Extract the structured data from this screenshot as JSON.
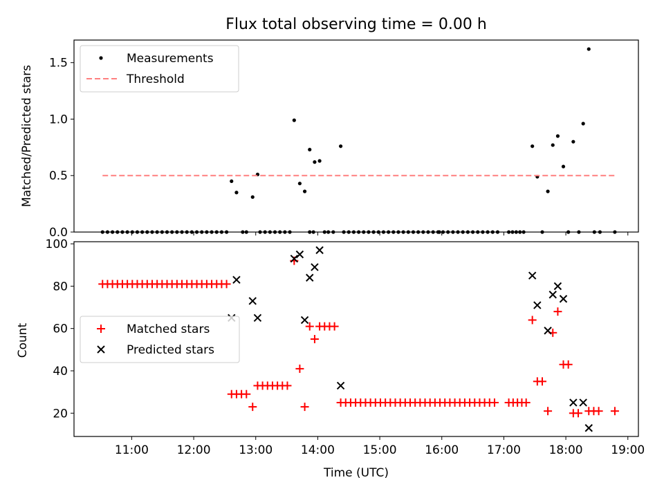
{
  "title": "Flux total observing time = 0.00 h",
  "colors": {
    "measurement": "#000000",
    "threshold": "#ff7f7f",
    "matched": "#ff0000",
    "predicted": "#000000",
    "axes": "#000000",
    "legend_border": "#cccccc"
  },
  "chart_data": [
    {
      "type": "scatter",
      "panel": "top",
      "xlabel": "",
      "ylabel": "Matched/Predicted stars",
      "xlim": [
        10.07,
        19.17
      ],
      "ylim": [
        0,
        1.7
      ],
      "yticks": [
        0.0,
        0.5,
        1.0,
        1.5
      ],
      "ytick_labels": [
        "0.0",
        "0.5",
        "1.0",
        "1.5"
      ],
      "xticks": [
        11,
        12,
        13,
        14,
        15,
        16,
        17,
        18,
        19
      ],
      "legend_position": "upper-left",
      "grid": false,
      "legend": [
        {
          "label": "Measurements",
          "marker": "dot"
        },
        {
          "label": "Threshold",
          "marker": "dashed-line"
        }
      ],
      "series": [
        {
          "name": "Measurements",
          "marker": "dot",
          "zero_points_x": [
            10.53,
            10.61,
            10.69,
            10.77,
            10.85,
            10.93,
            11.01,
            11.09,
            11.17,
            11.25,
            11.33,
            11.41,
            11.49,
            11.57,
            11.65,
            11.73,
            11.81,
            11.89,
            11.97,
            12.05,
            12.13,
            12.21,
            12.29,
            12.37,
            12.45,
            12.53,
            12.79,
            12.85,
            13.07,
            13.15,
            13.23,
            13.31,
            13.39,
            13.47,
            13.55,
            13.87,
            13.93,
            14.11,
            14.17,
            14.25,
            14.42,
            14.5,
            14.58,
            14.66,
            14.74,
            14.82,
            14.9,
            14.98,
            15.06,
            15.14,
            15.22,
            15.3,
            15.38,
            15.46,
            15.54,
            15.62,
            15.7,
            15.78,
            15.86,
            15.94,
            15.96,
            16.02,
            16.1,
            16.18,
            16.26,
            16.34,
            16.42,
            16.5,
            16.58,
            16.66,
            16.74,
            16.82,
            16.9,
            17.08,
            17.14,
            17.2,
            17.26,
            17.32,
            17.62,
            18.04,
            18.21,
            18.46,
            18.55,
            18.79
          ],
          "points": [
            {
              "x": 12.61,
              "y": 0.45
            },
            {
              "x": 12.69,
              "y": 0.35
            },
            {
              "x": 12.95,
              "y": 0.31
            },
            {
              "x": 13.03,
              "y": 0.51
            },
            {
              "x": 13.62,
              "y": 0.99
            },
            {
              "x": 13.71,
              "y": 0.43
            },
            {
              "x": 13.79,
              "y": 0.36
            },
            {
              "x": 13.87,
              "y": 0.73
            },
            {
              "x": 13.95,
              "y": 0.62
            },
            {
              "x": 14.03,
              "y": 0.63
            },
            {
              "x": 14.37,
              "y": 0.76
            },
            {
              "x": 17.46,
              "y": 0.76
            },
            {
              "x": 17.54,
              "y": 0.49
            },
            {
              "x": 17.71,
              "y": 0.36
            },
            {
              "x": 17.79,
              "y": 0.77
            },
            {
              "x": 17.87,
              "y": 0.85
            },
            {
              "x": 17.96,
              "y": 0.58
            },
            {
              "x": 18.12,
              "y": 0.8
            },
            {
              "x": 18.28,
              "y": 0.96
            },
            {
              "x": 18.37,
              "y": 1.62
            }
          ]
        },
        {
          "name": "Threshold",
          "marker": "dashed-line",
          "x": [
            10.53,
            18.79
          ],
          "y": [
            0.5,
            0.5
          ]
        }
      ]
    },
    {
      "type": "scatter",
      "panel": "bottom",
      "xlabel": "Time (UTC)",
      "ylabel": "Count",
      "xlim": [
        10.07,
        19.17
      ],
      "ylim": [
        9,
        101
      ],
      "yticks": [
        20,
        40,
        60,
        80,
        100
      ],
      "xticks": [
        11,
        12,
        13,
        14,
        15,
        16,
        17,
        18,
        19
      ],
      "xtick_labels": [
        "11:00",
        "12:00",
        "13:00",
        "14:00",
        "15:00",
        "16:00",
        "17:00",
        "18:00",
        "19:00"
      ],
      "legend_position": "center-left",
      "grid": false,
      "legend": [
        {
          "label": "Matched stars",
          "marker": "plus"
        },
        {
          "label": "Predicted stars",
          "marker": "x"
        }
      ],
      "series": [
        {
          "name": "Matched stars",
          "marker": "plus",
          "points": [
            {
              "x": 10.53,
              "y": 81
            },
            {
              "x": 10.61,
              "y": 81
            },
            {
              "x": 10.69,
              "y": 81
            },
            {
              "x": 10.77,
              "y": 81
            },
            {
              "x": 10.85,
              "y": 81
            },
            {
              "x": 10.93,
              "y": 81
            },
            {
              "x": 11.01,
              "y": 81
            },
            {
              "x": 11.09,
              "y": 81
            },
            {
              "x": 11.17,
              "y": 81
            },
            {
              "x": 11.25,
              "y": 81
            },
            {
              "x": 11.33,
              "y": 81
            },
            {
              "x": 11.41,
              "y": 81
            },
            {
              "x": 11.49,
              "y": 81
            },
            {
              "x": 11.57,
              "y": 81
            },
            {
              "x": 11.65,
              "y": 81
            },
            {
              "x": 11.73,
              "y": 81
            },
            {
              "x": 11.81,
              "y": 81
            },
            {
              "x": 11.89,
              "y": 81
            },
            {
              "x": 11.97,
              "y": 81
            },
            {
              "x": 12.05,
              "y": 81
            },
            {
              "x": 12.13,
              "y": 81
            },
            {
              "x": 12.21,
              "y": 81
            },
            {
              "x": 12.29,
              "y": 81
            },
            {
              "x": 12.37,
              "y": 81
            },
            {
              "x": 12.45,
              "y": 81
            },
            {
              "x": 12.53,
              "y": 81
            },
            {
              "x": 12.61,
              "y": 29
            },
            {
              "x": 12.69,
              "y": 29
            },
            {
              "x": 12.77,
              "y": 29
            },
            {
              "x": 12.85,
              "y": 29
            },
            {
              "x": 12.95,
              "y": 23
            },
            {
              "x": 13.03,
              "y": 33
            },
            {
              "x": 13.11,
              "y": 33
            },
            {
              "x": 13.19,
              "y": 33
            },
            {
              "x": 13.27,
              "y": 33
            },
            {
              "x": 13.35,
              "y": 33
            },
            {
              "x": 13.43,
              "y": 33
            },
            {
              "x": 13.51,
              "y": 33
            },
            {
              "x": 13.62,
              "y": 92
            },
            {
              "x": 13.71,
              "y": 41
            },
            {
              "x": 13.79,
              "y": 23
            },
            {
              "x": 13.87,
              "y": 61
            },
            {
              "x": 13.95,
              "y": 55
            },
            {
              "x": 14.03,
              "y": 61
            },
            {
              "x": 14.11,
              "y": 61
            },
            {
              "x": 14.19,
              "y": 61
            },
            {
              "x": 14.27,
              "y": 61
            },
            {
              "x": 14.37,
              "y": 25
            },
            {
              "x": 14.45,
              "y": 25
            },
            {
              "x": 14.53,
              "y": 25
            },
            {
              "x": 14.61,
              "y": 25
            },
            {
              "x": 14.69,
              "y": 25
            },
            {
              "x": 14.77,
              "y": 25
            },
            {
              "x": 14.85,
              "y": 25
            },
            {
              "x": 14.93,
              "y": 25
            },
            {
              "x": 15.01,
              "y": 25
            },
            {
              "x": 15.09,
              "y": 25
            },
            {
              "x": 15.17,
              "y": 25
            },
            {
              "x": 15.25,
              "y": 25
            },
            {
              "x": 15.33,
              "y": 25
            },
            {
              "x": 15.41,
              "y": 25
            },
            {
              "x": 15.49,
              "y": 25
            },
            {
              "x": 15.57,
              "y": 25
            },
            {
              "x": 15.65,
              "y": 25
            },
            {
              "x": 15.73,
              "y": 25
            },
            {
              "x": 15.81,
              "y": 25
            },
            {
              "x": 15.89,
              "y": 25
            },
            {
              "x": 15.97,
              "y": 25
            },
            {
              "x": 16.05,
              "y": 25
            },
            {
              "x": 16.13,
              "y": 25
            },
            {
              "x": 16.21,
              "y": 25
            },
            {
              "x": 16.29,
              "y": 25
            },
            {
              "x": 16.37,
              "y": 25
            },
            {
              "x": 16.45,
              "y": 25
            },
            {
              "x": 16.53,
              "y": 25
            },
            {
              "x": 16.61,
              "y": 25
            },
            {
              "x": 16.69,
              "y": 25
            },
            {
              "x": 16.77,
              "y": 25
            },
            {
              "x": 16.85,
              "y": 25
            },
            {
              "x": 17.08,
              "y": 25
            },
            {
              "x": 17.15,
              "y": 25
            },
            {
              "x": 17.22,
              "y": 25
            },
            {
              "x": 17.29,
              "y": 25
            },
            {
              "x": 17.36,
              "y": 25
            },
            {
              "x": 17.46,
              "y": 64
            },
            {
              "x": 17.54,
              "y": 35
            },
            {
              "x": 17.62,
              "y": 35
            },
            {
              "x": 17.71,
              "y": 21
            },
            {
              "x": 17.79,
              "y": 58
            },
            {
              "x": 17.87,
              "y": 68
            },
            {
              "x": 17.96,
              "y": 43
            },
            {
              "x": 18.04,
              "y": 43
            },
            {
              "x": 18.12,
              "y": 20
            },
            {
              "x": 18.2,
              "y": 20
            },
            {
              "x": 18.37,
              "y": 21
            },
            {
              "x": 18.45,
              "y": 21
            },
            {
              "x": 18.53,
              "y": 21
            },
            {
              "x": 18.79,
              "y": 21
            }
          ]
        },
        {
          "name": "Predicted stars",
          "marker": "x",
          "points": [
            {
              "x": 12.61,
              "y": 65
            },
            {
              "x": 12.69,
              "y": 83
            },
            {
              "x": 12.95,
              "y": 73
            },
            {
              "x": 13.03,
              "y": 65
            },
            {
              "x": 13.62,
              "y": 93
            },
            {
              "x": 13.71,
              "y": 95
            },
            {
              "x": 13.79,
              "y": 64
            },
            {
              "x": 13.87,
              "y": 84
            },
            {
              "x": 13.95,
              "y": 89
            },
            {
              "x": 14.03,
              "y": 97
            },
            {
              "x": 14.37,
              "y": 33
            },
            {
              "x": 17.46,
              "y": 85
            },
            {
              "x": 17.54,
              "y": 71
            },
            {
              "x": 17.71,
              "y": 59
            },
            {
              "x": 17.79,
              "y": 76
            },
            {
              "x": 17.87,
              "y": 80
            },
            {
              "x": 17.96,
              "y": 74
            },
            {
              "x": 18.12,
              "y": 25
            },
            {
              "x": 18.28,
              "y": 25
            },
            {
              "x": 18.37,
              "y": 13
            }
          ]
        }
      ]
    }
  ]
}
